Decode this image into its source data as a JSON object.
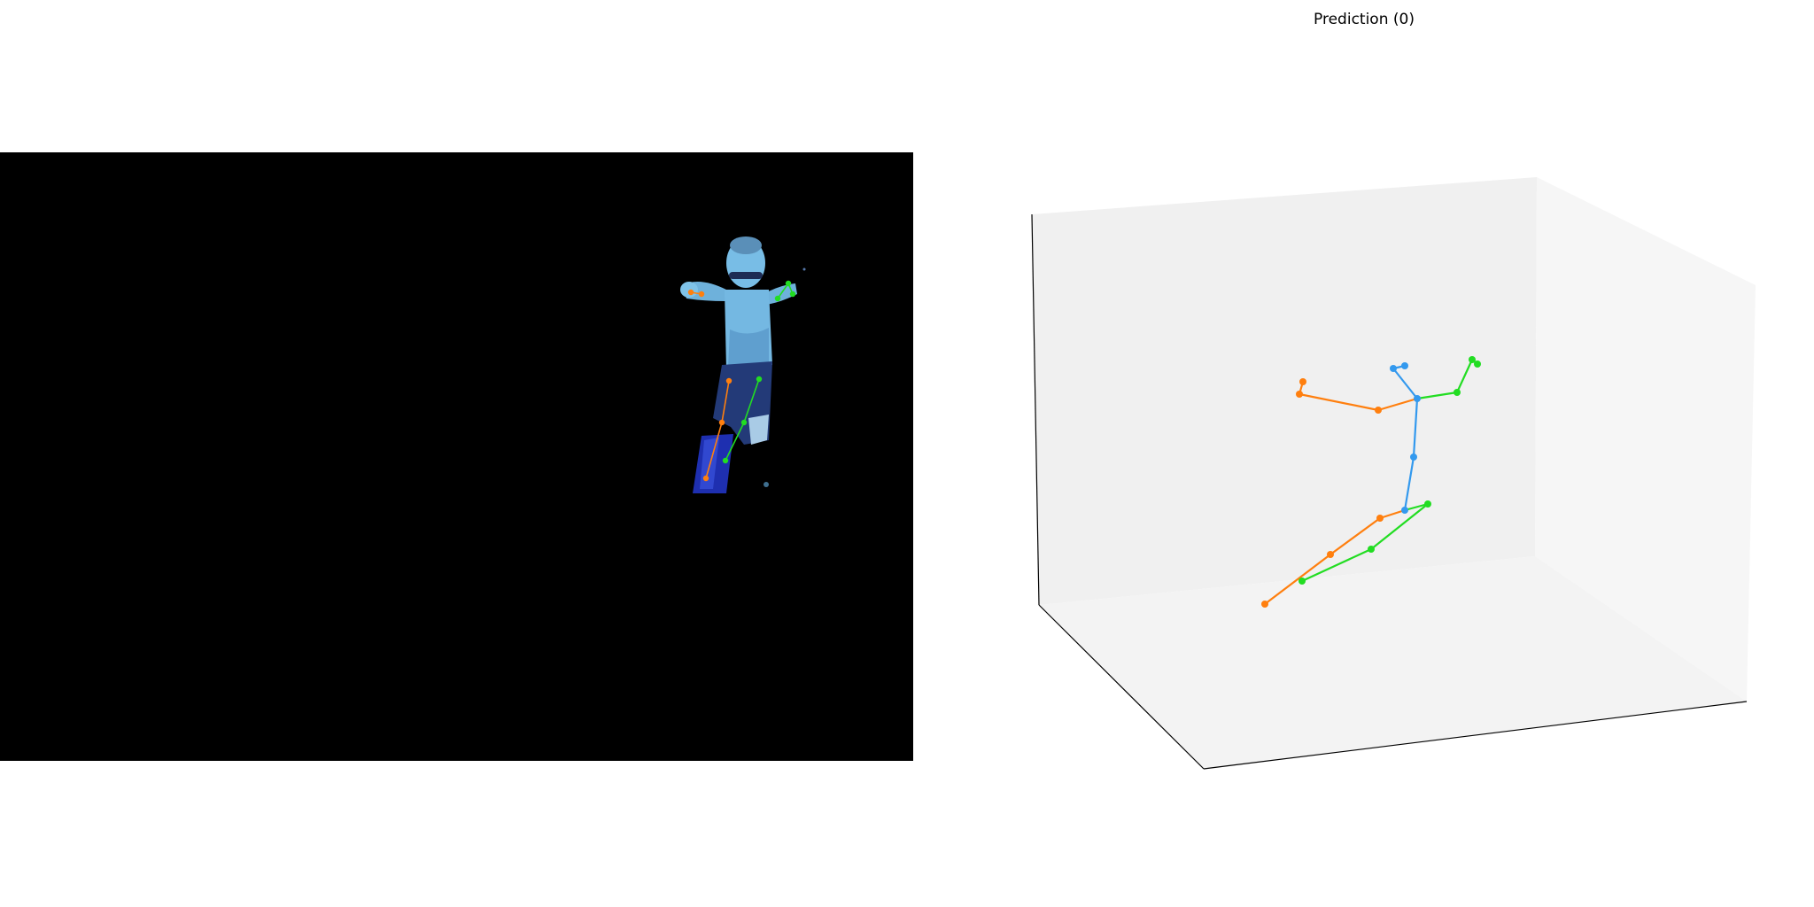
{
  "figure": {
    "title": "Prediction (0)"
  },
  "colors": {
    "background": "#000000",
    "left_limb": "#ff7f0e",
    "right_limb": "#22dd22",
    "spine": "#3399ee",
    "pane_back": "#f0f0f0",
    "pane_side": "#f5f5f5",
    "pane_floor": "#f3f3f3",
    "axis_line": "#000000",
    "swimmer_skin": "#6fb3de",
    "swimmer_dark": "#2a3f7a",
    "swimmer_legs": "#1f2fa8"
  }
}
